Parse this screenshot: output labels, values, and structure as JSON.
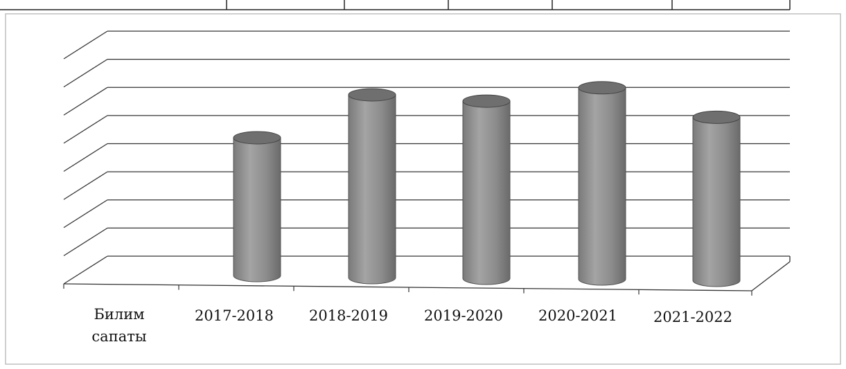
{
  "chart_data": {
    "type": "bar",
    "style": "3d-cylinder",
    "row_label": "Билим сапаты",
    "row_label_lines": [
      "Билим",
      "сапаты"
    ],
    "categories": [
      "2017-2018",
      "2018-2019",
      "2019-2020",
      "2020-2021",
      "2021-2022"
    ],
    "values": [
      49,
      65,
      63,
      68,
      58
    ],
    "ylim": [
      0,
      80
    ],
    "grid": true,
    "legend": "none",
    "colors": {
      "bar": "#8e8e8e",
      "bar_top": "#6f6f6f",
      "grid": "#333333"
    }
  }
}
